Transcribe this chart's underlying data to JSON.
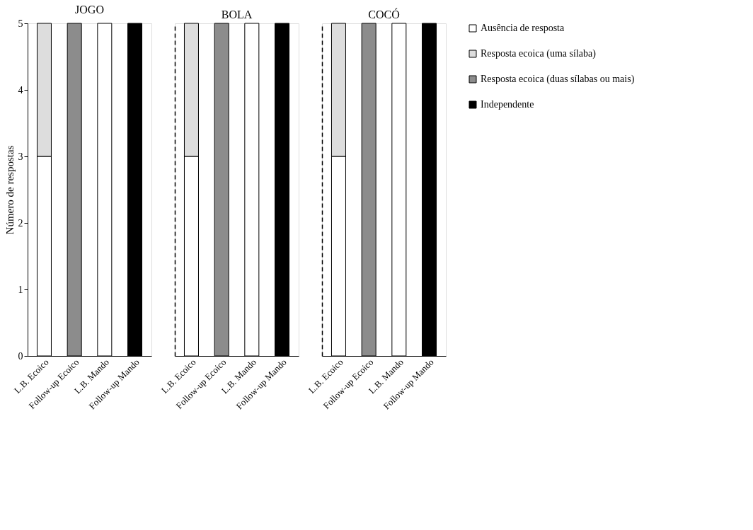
{
  "chart_data": [
    {
      "type": "bar",
      "title": "JOGO",
      "ylabel": "Número de respostas",
      "categories": [
        "L.B. Ecoico",
        "Follow-up Ecoico",
        "L.B. Mando",
        "Follow-up Mando"
      ],
      "stacked": true,
      "ylim": [
        0,
        5
      ],
      "yticks": [
        0,
        1,
        2,
        3,
        4,
        5
      ],
      "grid": false,
      "legend": "right",
      "series": [
        {
          "name": "Ausência de resposta",
          "color": "#ffffff",
          "values": [
            3,
            null,
            5,
            null
          ]
        },
        {
          "name": "Resposta ecoica (uma sílaba)",
          "color": "#dddddd",
          "values": [
            2,
            null,
            null,
            null
          ]
        },
        {
          "name": "Resposta ecoica (duas sílabas ou mais)",
          "color": "#8c8c8c",
          "values": [
            null,
            5,
            null,
            null
          ]
        },
        {
          "name": "Independente",
          "color": "#000000",
          "values": [
            null,
            null,
            null,
            5
          ]
        }
      ]
    },
    {
      "type": "bar",
      "title": "BOLA",
      "categories": [
        "L.B. Ecoico",
        "Follow-up Ecoico",
        "L.B. Mando",
        "Follow-up Mando"
      ],
      "stacked": true,
      "ylim": [
        0,
        5
      ],
      "grid": false,
      "tick_labels": "x",
      "series": [
        {
          "color": "#ffffff",
          "values": [
            3,
            null,
            5,
            null
          ]
        },
        {
          "color": "#dddddd",
          "values": [
            2,
            null,
            null,
            null
          ]
        },
        {
          "color": "#8c8c8c",
          "values": [
            null,
            5,
            null,
            null
          ]
        },
        {
          "color": "#000000",
          "values": [
            null,
            null,
            null,
            5
          ]
        }
      ]
    },
    {
      "type": "bar",
      "title": "COCÓ",
      "categories": [
        "L.B. Ecoico",
        "Follow-up Ecoico",
        "L.B. Mando",
        "Follow-up Mando"
      ],
      "stacked": true,
      "ylim": [
        0,
        5
      ],
      "grid": false,
      "tick_labels": "x",
      "series": [
        {
          "color": "#ffffff",
          "values": [
            3,
            null,
            5,
            null
          ]
        },
        {
          "color": "#dddddd",
          "values": [
            2,
            null,
            null,
            null
          ]
        },
        {
          "color": "#8c8c8c",
          "values": [
            null,
            5,
            null,
            null
          ]
        },
        {
          "color": "#000000",
          "values": [
            null,
            null,
            null,
            5
          ]
        }
      ]
    }
  ]
}
